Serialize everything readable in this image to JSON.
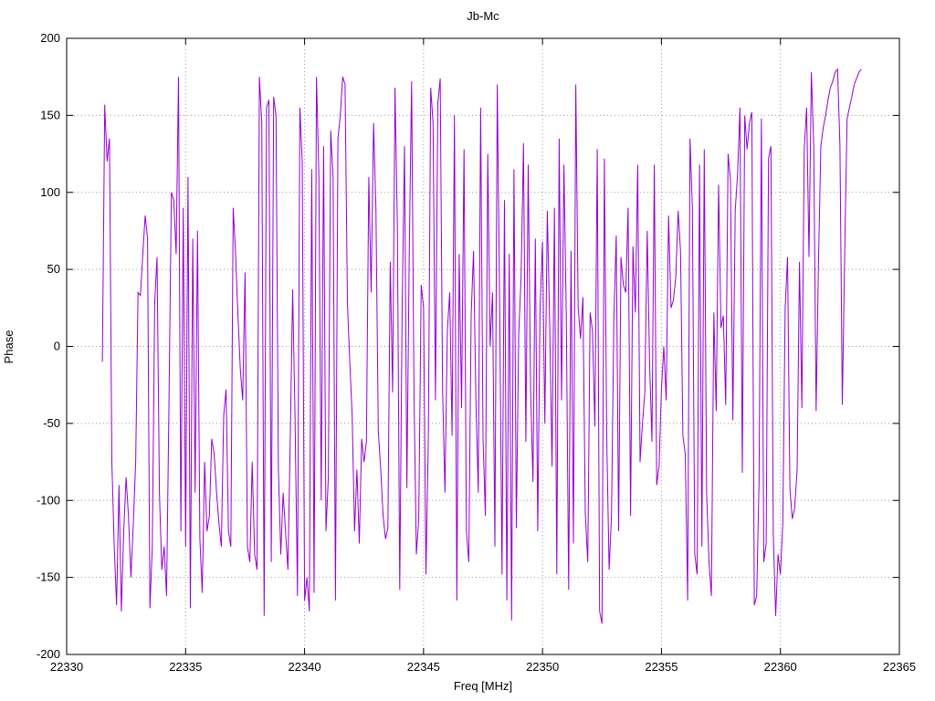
{
  "chart_data": {
    "type": "line",
    "title": "Jb-Mc",
    "xlabel": "Freq [MHz]",
    "ylabel": "Phase",
    "xlim": [
      22330,
      22365
    ],
    "ylim": [
      -200,
      200
    ],
    "xticks": [
      22330,
      22335,
      22340,
      22345,
      22350,
      22355,
      22360,
      22365
    ],
    "yticks": [
      -200,
      -150,
      -100,
      -50,
      0,
      50,
      100,
      150,
      200
    ],
    "grid": "dotted",
    "legend": "none",
    "line_color": "#9400d3",
    "border_color": "#000000",
    "grid_color": "#9a9a9a",
    "series": [
      {
        "name": "Jb-Mc phase",
        "x_start": 22331.5,
        "x_step": 0.1,
        "values": [
          -10,
          157,
          120,
          135,
          -75,
          -130,
          -168,
          -90,
          -172,
          -120,
          -85,
          -110,
          -150,
          -115,
          -75,
          35,
          33,
          60,
          85,
          70,
          -170,
          -130,
          28,
          58,
          -95,
          -145,
          -130,
          -162,
          -40,
          100,
          95,
          60,
          175,
          -120,
          90,
          -130,
          110,
          -170,
          70,
          -95,
          75,
          -125,
          -160,
          -75,
          -120,
          -110,
          -60,
          -70,
          -95,
          -115,
          -130,
          -45,
          -28,
          -120,
          -130,
          90,
          60,
          20,
          -15,
          -35,
          48,
          -130,
          -140,
          -75,
          -135,
          -145,
          175,
          145,
          -175,
          155,
          160,
          -140,
          162,
          150,
          -80,
          -135,
          -95,
          -120,
          -145,
          -60,
          37,
          -45,
          -162,
          155,
          120,
          -165,
          -150,
          -172,
          115,
          -160,
          175,
          112,
          -100,
          130,
          -120,
          -85,
          140,
          110,
          -165,
          135,
          150,
          175,
          170,
          28,
          -10,
          -45,
          -120,
          -80,
          -128,
          -60,
          -75,
          -62,
          110,
          35,
          145,
          90,
          -55,
          -80,
          -110,
          -125,
          -118,
          55,
          -30,
          168,
          78,
          -158,
          22,
          130,
          -92,
          60,
          172,
          -30,
          -135,
          -112,
          40,
          25,
          -148,
          -60,
          168,
          145,
          -35,
          158,
          174,
          -28,
          -95,
          10,
          35,
          -58,
          150,
          -165,
          60,
          -40,
          128,
          -120,
          -140,
          20,
          62,
          -35,
          -95,
          155,
          -60,
          -110,
          125,
          0,
          35,
          -130,
          170,
          28,
          -148,
          95,
          -165,
          60,
          -178,
          115,
          -118,
          8,
          45,
          132,
          -62,
          118,
          -28,
          -88,
          70,
          -120,
          25,
          68,
          -50,
          88,
          15,
          -78,
          90,
          -148,
          135,
          -35,
          118,
          20,
          -158,
          62,
          -128,
          170,
          25,
          5,
          32,
          -108,
          -140,
          22,
          10,
          -52,
          128,
          -172,
          -180,
          122,
          -60,
          -145,
          -110,
          18,
          72,
          -120,
          58,
          40,
          35,
          90,
          -110,
          65,
          22,
          118,
          -75,
          -50,
          -30,
          75,
          -10,
          -62,
          118,
          -90,
          -78,
          -28,
          0,
          -35,
          85,
          25,
          30,
          45,
          88,
          62,
          -58,
          -70,
          -165,
          135,
          90,
          -135,
          -148,
          118,
          -130,
          128,
          -95,
          -140,
          -162,
          22,
          -42,
          105,
          12,
          20,
          -38,
          125,
          108,
          -48,
          88,
          112,
          155,
          -82,
          150,
          128,
          145,
          152,
          -168,
          -162,
          -88,
          148,
          -140,
          -128,
          122,
          130,
          -122,
          -175,
          -135,
          -148,
          -115,
          25,
          58,
          -92,
          -112,
          -105,
          -80,
          55,
          -40,
          128,
          155,
          58,
          178,
          130,
          -42,
          55,
          130,
          142,
          150,
          160,
          168,
          172,
          178,
          180,
          130,
          -38,
          60,
          148,
          155,
          162,
          170,
          174,
          178,
          180
        ]
      }
    ]
  }
}
